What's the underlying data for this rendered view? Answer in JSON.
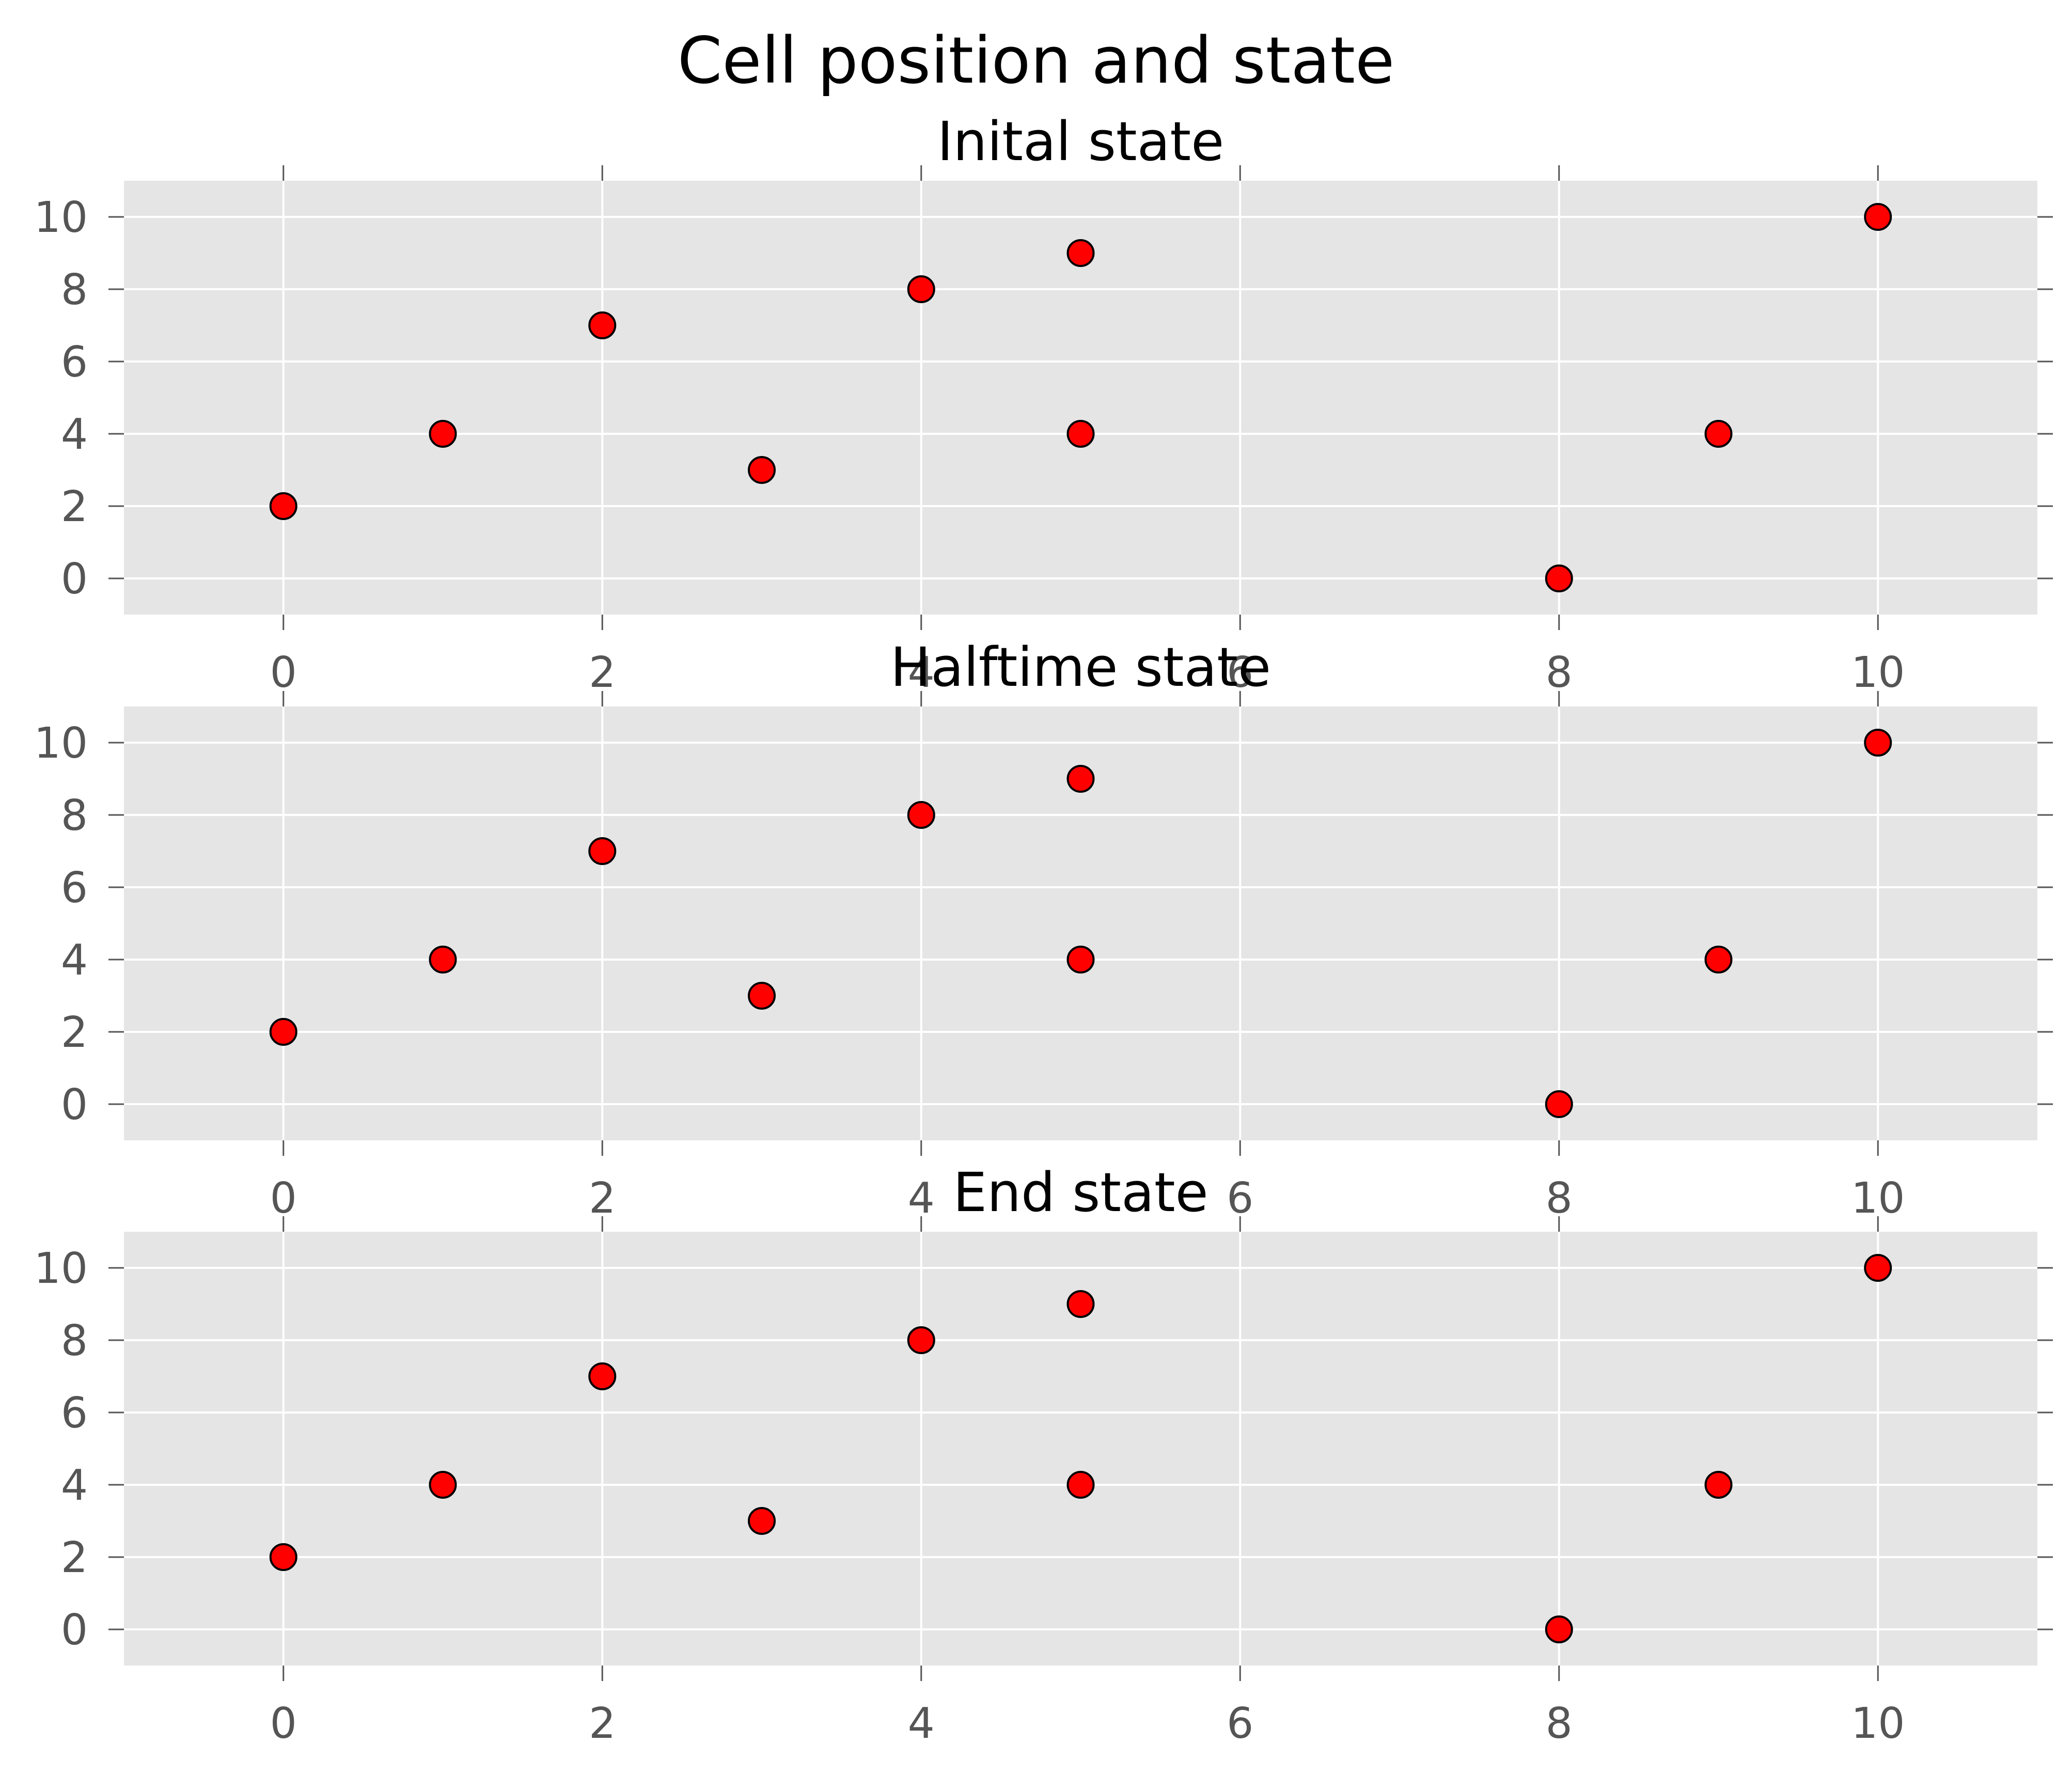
{
  "chart_data": {
    "type": "scatter",
    "title": "Cell position and state",
    "marker_color": "#ff0000",
    "marker_edge_color": "#000000",
    "axes_background": "#e5e5e5",
    "grid": true,
    "xlim": [
      -1,
      11
    ],
    "ylim": [
      -1,
      11
    ],
    "xticks": [
      0,
      2,
      4,
      6,
      8,
      10
    ],
    "yticks": [
      0,
      2,
      4,
      6,
      8,
      10
    ],
    "panels": [
      {
        "title": "Inital state",
        "points": [
          {
            "x": 0,
            "y": 2
          },
          {
            "x": 1,
            "y": 4
          },
          {
            "x": 2,
            "y": 7
          },
          {
            "x": 3,
            "y": 3
          },
          {
            "x": 4,
            "y": 8
          },
          {
            "x": 5,
            "y": 9
          },
          {
            "x": 5,
            "y": 4
          },
          {
            "x": 8,
            "y": 0
          },
          {
            "x": 9,
            "y": 4
          },
          {
            "x": 10,
            "y": 10
          }
        ]
      },
      {
        "title": "Halftime state",
        "points": [
          {
            "x": 0,
            "y": 2
          },
          {
            "x": 1,
            "y": 4
          },
          {
            "x": 2,
            "y": 7
          },
          {
            "x": 3,
            "y": 3
          },
          {
            "x": 4,
            "y": 8
          },
          {
            "x": 5,
            "y": 9
          },
          {
            "x": 5,
            "y": 4
          },
          {
            "x": 8,
            "y": 0
          },
          {
            "x": 9,
            "y": 4
          },
          {
            "x": 10,
            "y": 10
          }
        ]
      },
      {
        "title": "End state",
        "points": [
          {
            "x": 0,
            "y": 2
          },
          {
            "x": 1,
            "y": 4
          },
          {
            "x": 2,
            "y": 7
          },
          {
            "x": 3,
            "y": 3
          },
          {
            "x": 4,
            "y": 8
          },
          {
            "x": 5,
            "y": 9
          },
          {
            "x": 5,
            "y": 4
          },
          {
            "x": 8,
            "y": 0
          },
          {
            "x": 9,
            "y": 4
          },
          {
            "x": 10,
            "y": 10
          }
        ]
      }
    ]
  }
}
